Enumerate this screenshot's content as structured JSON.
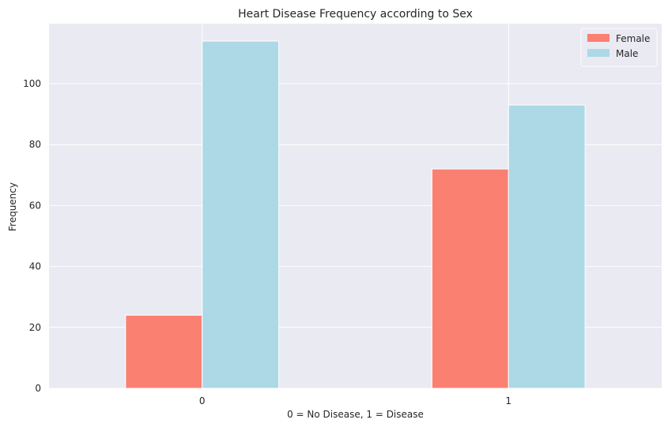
{
  "chart_data": {
    "type": "bar",
    "title": "Heart Disease Frequency according to Sex",
    "xlabel": "0 = No Disease, 1 = Disease",
    "ylabel": "Frequency",
    "categories": [
      "0",
      "1"
    ],
    "series": [
      {
        "name": "Female",
        "values": [
          24,
          72
        ],
        "color": "#fa8072"
      },
      {
        "name": "Male",
        "values": [
          114,
          93
        ],
        "color": "#add8e6"
      }
    ],
    "ylim": [
      0,
      119.7
    ],
    "yticks": [
      0,
      20,
      40,
      60,
      80,
      100
    ],
    "grid": true,
    "legend_position": "top-right",
    "background_color": "#eaeaf2"
  }
}
